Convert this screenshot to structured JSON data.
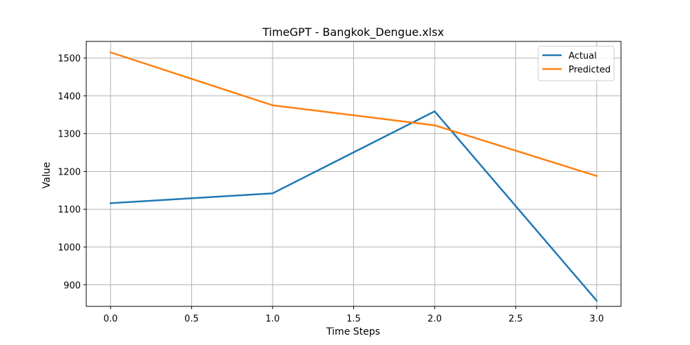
{
  "chart_data": {
    "type": "line",
    "title": "TimeGPT - Bangkok_Dengue.xlsx",
    "xlabel": "Time Steps",
    "ylabel": "Value",
    "x": [
      0,
      1,
      2,
      3
    ],
    "xlim": [
      -0.15,
      3.15
    ],
    "ylim": [
      843,
      1544
    ],
    "xticks": [
      0.0,
      0.5,
      1.0,
      1.5,
      2.0,
      2.5,
      3.0
    ],
    "xtick_labels": [
      "0.0",
      "0.5",
      "1.0",
      "1.5",
      "2.0",
      "2.5",
      "3.0"
    ],
    "yticks": [
      900,
      1000,
      1100,
      1200,
      1300,
      1400,
      1500
    ],
    "ytick_labels": [
      "900",
      "1000",
      "1100",
      "1200",
      "1300",
      "1400",
      "1500"
    ],
    "grid": true,
    "legend_position": "top-right",
    "series": [
      {
        "name": "Actual",
        "color": "#1f77b4",
        "values": [
          1116,
          1142,
          1359,
          858
        ]
      },
      {
        "name": "Predicted",
        "color": "#ff7f0e",
        "values": [
          1515,
          1375,
          1322,
          1188
        ]
      }
    ]
  }
}
